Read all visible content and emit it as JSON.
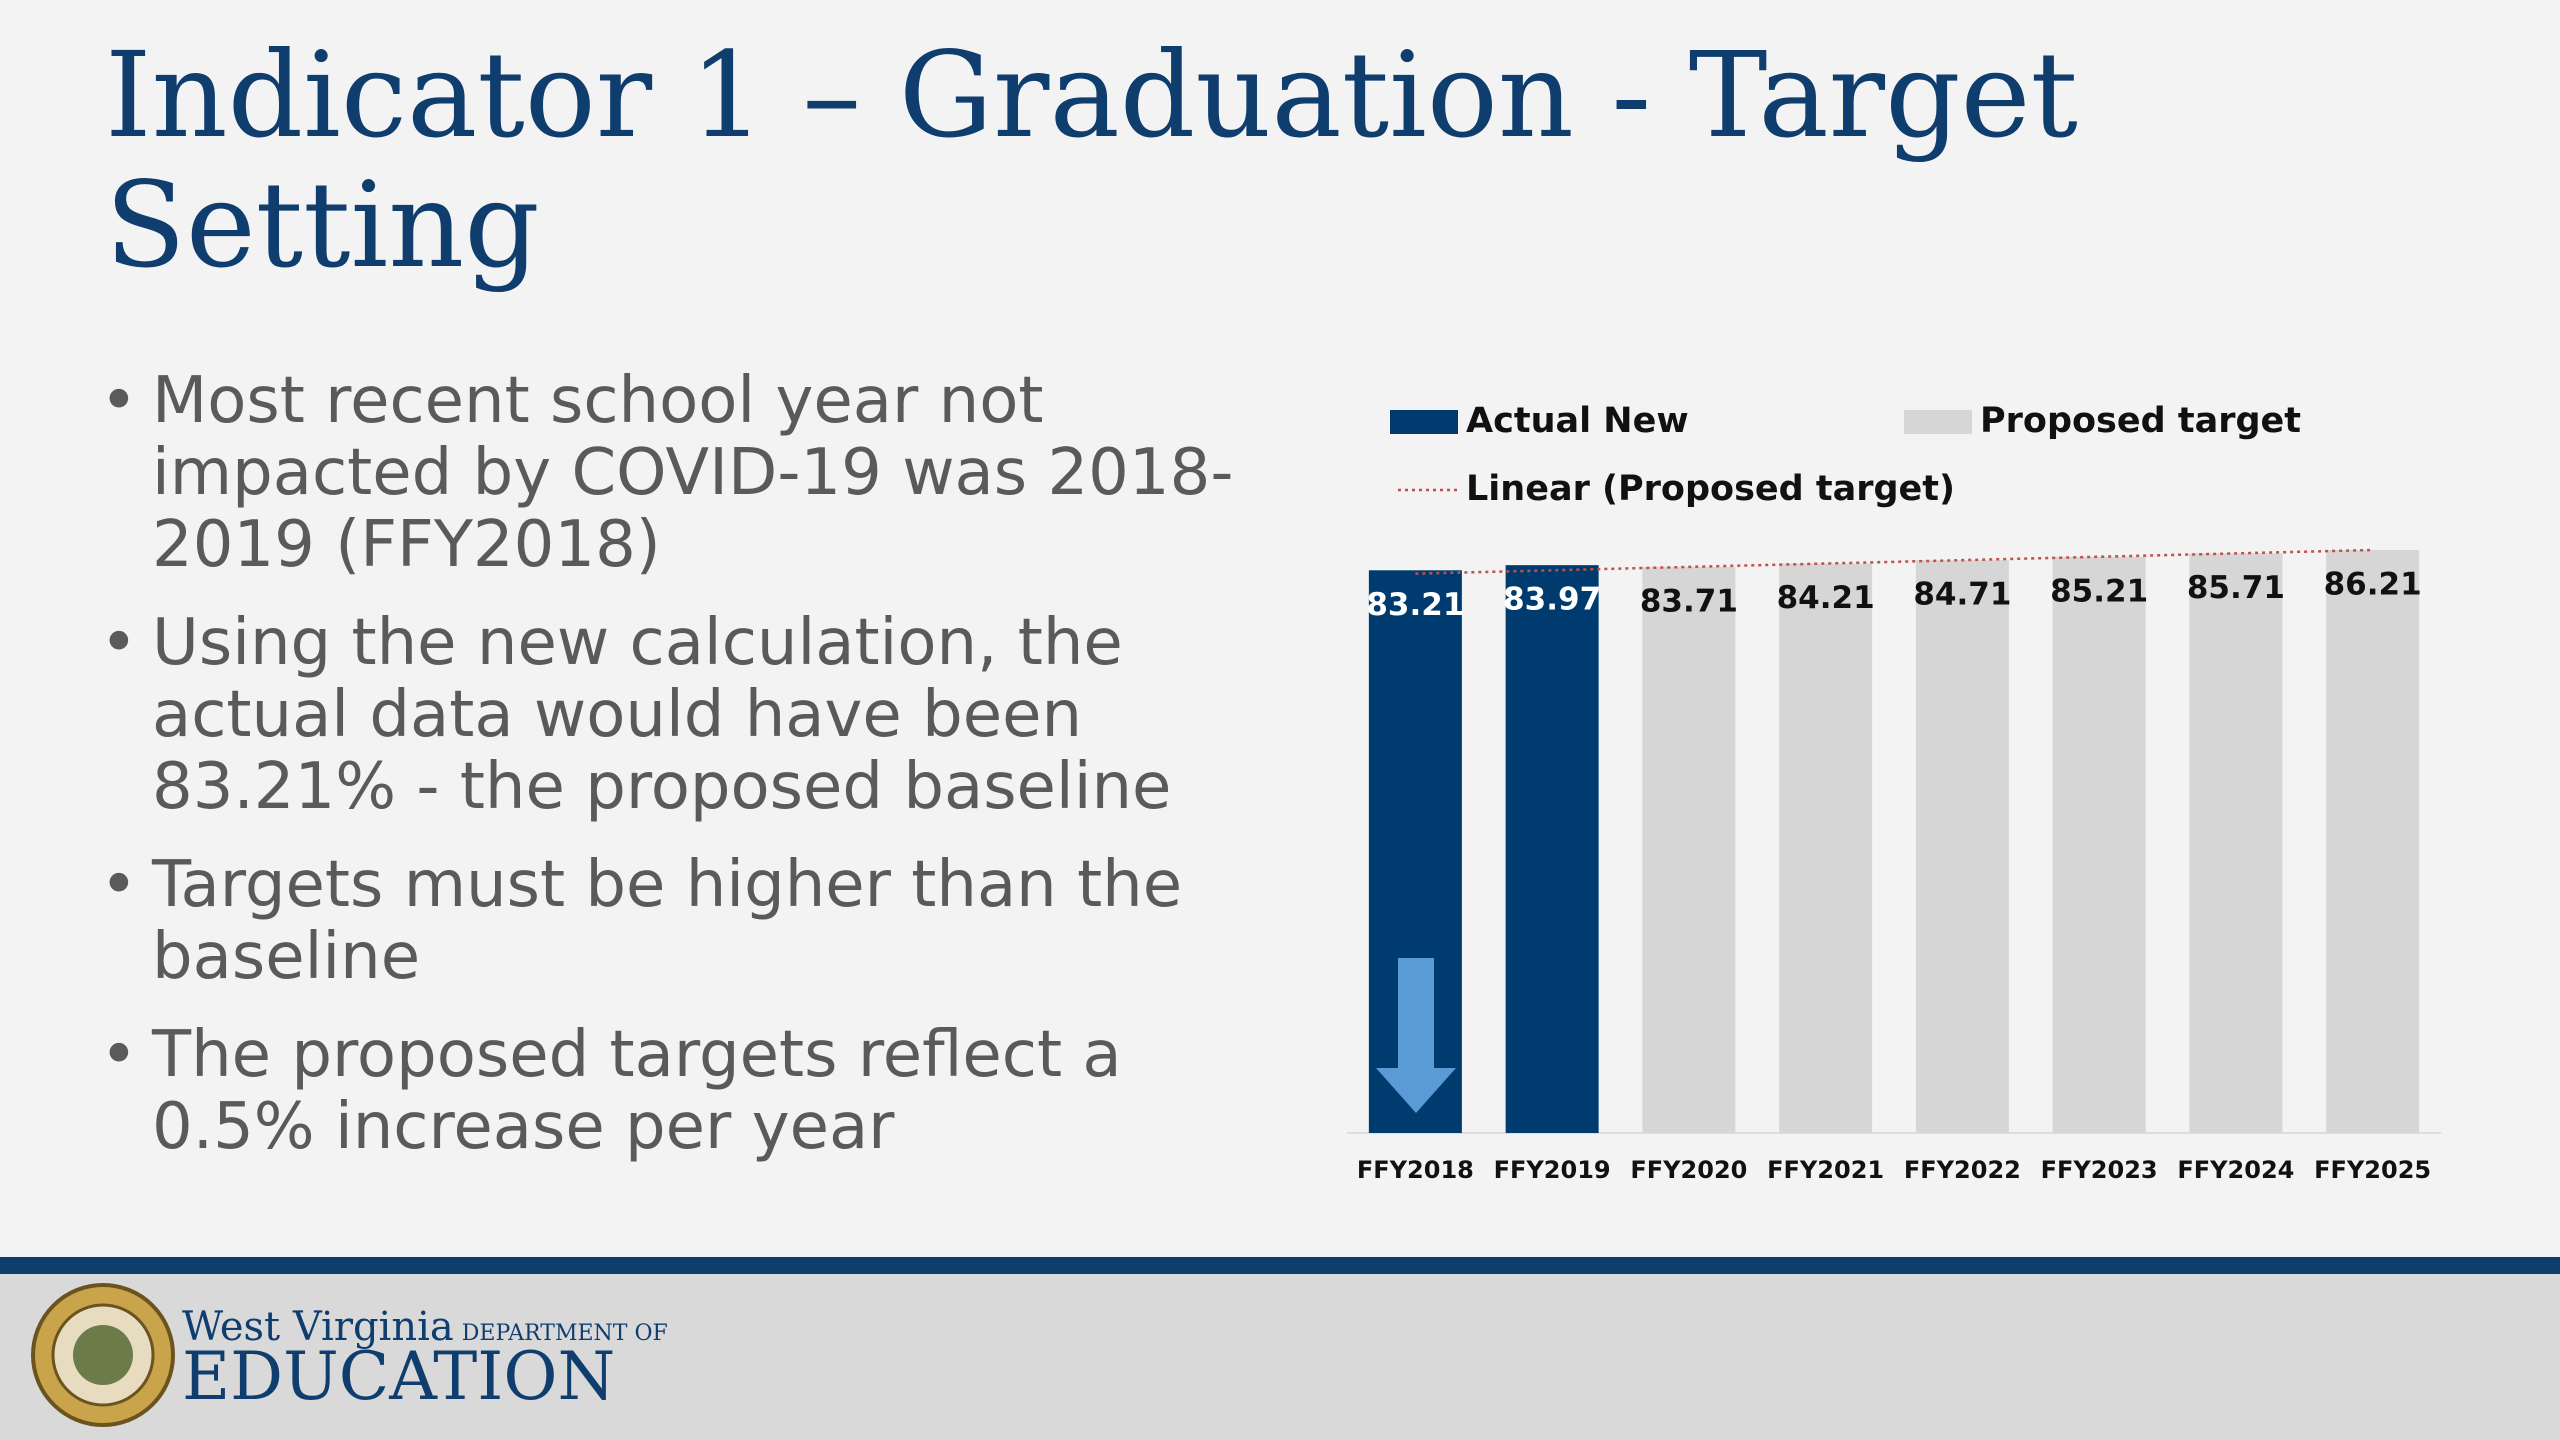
{
  "slide_title": "Indicator 1 – Graduation - Target Setting",
  "bullets": [
    "Most recent school year not impacted by COVID-19 was 2018-2019 (FFY2018)",
    "Using the new calculation, the actual data would have been 83.21% - the proposed baseline",
    "Targets must be higher than the baseline",
    "The proposed targets reflect a 0.5% increase per year"
  ],
  "footer": {
    "state": "West Virginia",
    "department": "DEPARTMENT OF",
    "agency": "EDUCATION"
  },
  "chart_data": {
    "type": "bar",
    "categories": [
      "FFY2018",
      "FFY2019",
      "FFY2020",
      "FFY2021",
      "FFY2022",
      "FFY2023",
      "FFY2024",
      "FFY2025"
    ],
    "series": [
      {
        "name": "Actual New",
        "color": "#003b6f",
        "values": [
          83.21,
          83.97,
          null,
          null,
          null,
          null,
          null,
          null
        ]
      },
      {
        "name": "Proposed target",
        "color": "#d6d6d6",
        "values": [
          null,
          null,
          83.71,
          84.21,
          84.71,
          85.21,
          85.71,
          86.21
        ]
      }
    ],
    "trendline": {
      "name": "Linear (Proposed target)",
      "color": "#c0504d"
    }
  }
}
